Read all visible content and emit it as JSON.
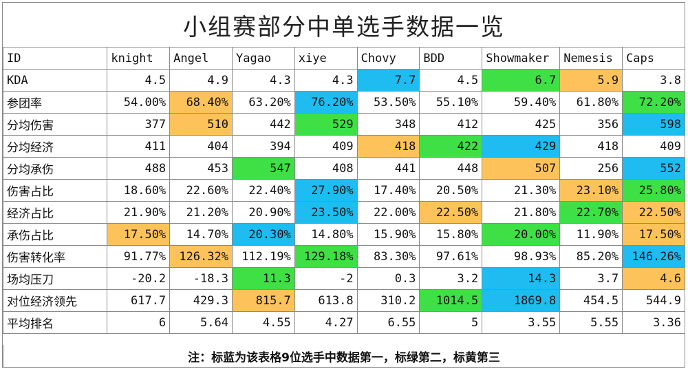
{
  "title": "小组赛部分中单选手数据一览",
  "note": "注：标蓝为该表格9位选手中数据第一，标绿第二，标黄第三",
  "colors": {
    "first": "#1ebcf0",
    "second": "#3ee046",
    "third": "#fdc35a"
  },
  "header": [
    "ID",
    "knight",
    "Angel",
    "Yagao",
    "xiye",
    "Chovy",
    "BDD",
    "Showmaker",
    "Nemesis",
    "Caps"
  ],
  "rows": [
    {
      "label": "KDA",
      "cells": [
        {
          "v": "4.5"
        },
        {
          "v": "4.9"
        },
        {
          "v": "4.3"
        },
        {
          "v": "4.3"
        },
        {
          "v": "7.7",
          "c": "first"
        },
        {
          "v": "4.5"
        },
        {
          "v": "6.7",
          "c": "second"
        },
        {
          "v": "5.9",
          "c": "third"
        },
        {
          "v": "3.8"
        }
      ]
    },
    {
      "label": "参团率",
      "cells": [
        {
          "v": "54.00%"
        },
        {
          "v": "68.40%",
          "c": "third"
        },
        {
          "v": "63.20%"
        },
        {
          "v": "76.20%",
          "c": "first"
        },
        {
          "v": "53.50%"
        },
        {
          "v": "55.10%"
        },
        {
          "v": "59.40%"
        },
        {
          "v": "61.80%"
        },
        {
          "v": "72.20%",
          "c": "second"
        }
      ]
    },
    {
      "label": "分均伤害",
      "cells": [
        {
          "v": "377"
        },
        {
          "v": "510",
          "c": "third"
        },
        {
          "v": "442"
        },
        {
          "v": "529",
          "c": "second"
        },
        {
          "v": "348"
        },
        {
          "v": "412"
        },
        {
          "v": "425"
        },
        {
          "v": "356"
        },
        {
          "v": "598",
          "c": "first"
        }
      ]
    },
    {
      "label": "分均经济",
      "cells": [
        {
          "v": "411"
        },
        {
          "v": "404"
        },
        {
          "v": "394"
        },
        {
          "v": "409"
        },
        {
          "v": "418",
          "c": "third"
        },
        {
          "v": "422",
          "c": "second"
        },
        {
          "v": "429",
          "c": "first"
        },
        {
          "v": "418"
        },
        {
          "v": "409"
        }
      ]
    },
    {
      "label": "分均承伤",
      "cells": [
        {
          "v": "488"
        },
        {
          "v": "453"
        },
        {
          "v": "547",
          "c": "second"
        },
        {
          "v": "408"
        },
        {
          "v": "441"
        },
        {
          "v": "448"
        },
        {
          "v": "507",
          "c": "third"
        },
        {
          "v": "256"
        },
        {
          "v": "552",
          "c": "first"
        }
      ]
    },
    {
      "label": "伤害占比",
      "cells": [
        {
          "v": "18.60%"
        },
        {
          "v": "22.60%"
        },
        {
          "v": "22.40%"
        },
        {
          "v": "27.90%",
          "c": "first"
        },
        {
          "v": "17.40%"
        },
        {
          "v": "20.50%"
        },
        {
          "v": "21.30%"
        },
        {
          "v": "23.10%",
          "c": "third"
        },
        {
          "v": "25.80%",
          "c": "second"
        }
      ]
    },
    {
      "label": "经济占比",
      "cells": [
        {
          "v": "21.90%"
        },
        {
          "v": "21.20%"
        },
        {
          "v": "20.90%"
        },
        {
          "v": "23.50%",
          "c": "first"
        },
        {
          "v": "22.00%"
        },
        {
          "v": "22.50%",
          "c": "third"
        },
        {
          "v": "21.80%"
        },
        {
          "v": "22.70%",
          "c": "second"
        },
        {
          "v": "22.50%",
          "c": "third"
        }
      ]
    },
    {
      "label": "承伤占比",
      "cells": [
        {
          "v": "17.50%",
          "c": "third"
        },
        {
          "v": "14.70%"
        },
        {
          "v": "20.30%",
          "c": "first"
        },
        {
          "v": "14.80%"
        },
        {
          "v": "15.90%"
        },
        {
          "v": "15.80%"
        },
        {
          "v": "20.00%",
          "c": "second"
        },
        {
          "v": "11.90%"
        },
        {
          "v": "17.50%",
          "c": "third"
        }
      ]
    },
    {
      "label": "伤害转化率",
      "cells": [
        {
          "v": "91.77%"
        },
        {
          "v": "126.32%",
          "c": "third"
        },
        {
          "v": "112.19%"
        },
        {
          "v": "129.18%",
          "c": "second"
        },
        {
          "v": "83.30%"
        },
        {
          "v": "97.61%"
        },
        {
          "v": "98.93%"
        },
        {
          "v": "85.20%"
        },
        {
          "v": "146.26%",
          "c": "first"
        }
      ]
    },
    {
      "label": "场均压刀",
      "cells": [
        {
          "v": "-20.2"
        },
        {
          "v": "-18.3"
        },
        {
          "v": "11.3",
          "c": "second"
        },
        {
          "v": "-2"
        },
        {
          "v": "0.3"
        },
        {
          "v": "3.2"
        },
        {
          "v": "14.3",
          "c": "first"
        },
        {
          "v": "3.7"
        },
        {
          "v": "4.6",
          "c": "third"
        }
      ]
    },
    {
      "label": "对位经济领先",
      "cells": [
        {
          "v": "617.7"
        },
        {
          "v": "429.3"
        },
        {
          "v": "815.7",
          "c": "third"
        },
        {
          "v": "613.8"
        },
        {
          "v": "310.2"
        },
        {
          "v": "1014.5",
          "c": "second"
        },
        {
          "v": "1869.8",
          "c": "first"
        },
        {
          "v": "454.5"
        },
        {
          "v": "544.9"
        }
      ]
    },
    {
      "label": "平均排名",
      "cells": [
        {
          "v": "6"
        },
        {
          "v": "5.64"
        },
        {
          "v": "4.55"
        },
        {
          "v": "4.27"
        },
        {
          "v": "6.55"
        },
        {
          "v": "5"
        },
        {
          "v": "3.55"
        },
        {
          "v": "5.55"
        },
        {
          "v": "3.36"
        }
      ]
    }
  ]
}
